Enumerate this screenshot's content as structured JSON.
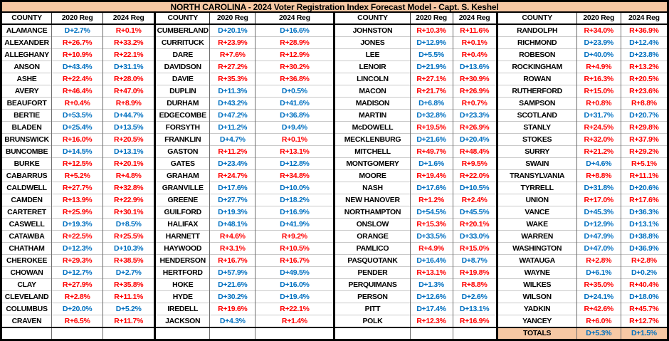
{
  "colors": {
    "header_band": "#f6c8a4",
    "dem_blue": "#0070c0",
    "rep_red": "#ff0000",
    "grid_gray": "#c9c9c9",
    "border_black": "#000000"
  },
  "chart_data": {
    "type": "table",
    "title": "NORTH CAROLINA - 2024 Voter Registration Index Forecast Model - Capt. S. Keshel",
    "columns": [
      "COUNTY",
      "2020 Reg",
      "2024 Reg"
    ],
    "legend_note": "D+ values shown in blue, R+ values shown in red",
    "groups": [
      [
        [
          "ALAMANCE",
          "D+2.7%",
          "R+0.1%"
        ],
        [
          "ALEXANDER",
          "R+26.7%",
          "R+33.2%"
        ],
        [
          "ALLEGHANY",
          "R+10.9%",
          "R+22.1%"
        ],
        [
          "ANSON",
          "D+43.4%",
          "D+31.1%"
        ],
        [
          "ASHE",
          "R+22.4%",
          "R+28.0%"
        ],
        [
          "AVERY",
          "R+46.4%",
          "R+47.0%"
        ],
        [
          "BEAUFORT",
          "R+0.4%",
          "R+8.9%"
        ],
        [
          "BERTIE",
          "D+53.5%",
          "D+44.7%"
        ],
        [
          "BLADEN",
          "D+25.4%",
          "D+13.5%"
        ],
        [
          "BRUNSWICK",
          "R+16.0%",
          "R+20.5%"
        ],
        [
          "BUNCOMBE",
          "D+14.5%",
          "D+13.1%"
        ],
        [
          "BURKE",
          "R+12.5%",
          "R+20.1%"
        ],
        [
          "CABARRUS",
          "R+5.2%",
          "R+4.8%"
        ],
        [
          "CALDWELL",
          "R+27.7%",
          "R+32.8%"
        ],
        [
          "CAMDEN",
          "R+13.9%",
          "R+22.9%"
        ],
        [
          "CARTERET",
          "R+25.9%",
          "R+30.1%"
        ],
        [
          "CASWELL",
          "D+19.3%",
          "D+8.5%"
        ],
        [
          "CATAWBA",
          "R+22.5%",
          "R+25.5%"
        ],
        [
          "CHATHAM",
          "D+12.3%",
          "D+10.3%"
        ],
        [
          "CHEROKEE",
          "R+29.3%",
          "R+38.5%"
        ],
        [
          "CHOWAN",
          "D+12.7%",
          "D+2.7%"
        ],
        [
          "CLAY",
          "R+27.9%",
          "R+35.8%"
        ],
        [
          "CLEVELAND",
          "R+2.8%",
          "R+11.1%"
        ],
        [
          "COLUMBUS",
          "D+20.0%",
          "D+5.2%"
        ],
        [
          "CRAVEN",
          "R+6.5%",
          "R+11.7%"
        ]
      ],
      [
        [
          "CUMBERLAND",
          "D+20.1%",
          "D+16.6%"
        ],
        [
          "CURRITUCK",
          "R+23.9%",
          "R+28.9%"
        ],
        [
          "DARE",
          "R+7.6%",
          "R+12.9%"
        ],
        [
          "DAVIDSON",
          "R+27.2%",
          "R+30.2%"
        ],
        [
          "DAVIE",
          "R+35.3%",
          "R+36.8%"
        ],
        [
          "DUPLIN",
          "D+11.3%",
          "D+0.5%"
        ],
        [
          "DURHAM",
          "D+43.2%",
          "D+41.6%"
        ],
        [
          "EDGECOMBE",
          "D+47.2%",
          "D+36.8%"
        ],
        [
          "FORSYTH",
          "D+11.2%",
          "D+9.4%"
        ],
        [
          "FRANKLIN",
          "D+4.7%",
          "R+0.1%"
        ],
        [
          "GASTON",
          "R+11.2%",
          "R+13.1%"
        ],
        [
          "GATES",
          "D+23.4%",
          "D+12.8%"
        ],
        [
          "GRAHAM",
          "R+24.7%",
          "R+34.8%"
        ],
        [
          "GRANVILLE",
          "D+17.6%",
          "D+10.0%"
        ],
        [
          "GREENE",
          "D+27.7%",
          "D+18.2%"
        ],
        [
          "GUILFORD",
          "D+19.3%",
          "D+16.9%"
        ],
        [
          "HALIFAX",
          "D+48.1%",
          "D+41.9%"
        ],
        [
          "HARNETT",
          "R+4.6%",
          "R+9.2%"
        ],
        [
          "HAYWOOD",
          "R+3.1%",
          "R+10.5%"
        ],
        [
          "HENDERSON",
          "R+16.7%",
          "R+16.7%"
        ],
        [
          "HERTFORD",
          "D+57.9%",
          "D+49.5%"
        ],
        [
          "HOKE",
          "D+21.6%",
          "D+16.0%"
        ],
        [
          "HYDE",
          "D+30.2%",
          "D+19.4%"
        ],
        [
          "IREDELL",
          "R+19.6%",
          "R+22.1%"
        ],
        [
          "JACKSON",
          "D+4.3%",
          "R+1.4%"
        ]
      ],
      [
        [
          "JOHNSTON",
          "R+10.3%",
          "R+11.6%"
        ],
        [
          "JONES",
          "D+12.9%",
          "R+0.1%"
        ],
        [
          "LEE",
          "D+5.5%",
          "R+0.4%"
        ],
        [
          "LENOIR",
          "D+21.9%",
          "D+13.6%"
        ],
        [
          "LINCOLN",
          "R+27.1%",
          "R+30.9%"
        ],
        [
          "MACON",
          "R+21.7%",
          "R+26.9%"
        ],
        [
          "MADISON",
          "D+6.8%",
          "R+0.7%"
        ],
        [
          "MARTIN",
          "D+32.8%",
          "D+23.3%"
        ],
        [
          "McDOWELL",
          "R+19.5%",
          "R+26.9%"
        ],
        [
          "MECKLENBURG",
          "D+21.6%",
          "D+20.4%"
        ],
        [
          "MITCHELL",
          "R+49.7%",
          "R+48.4%"
        ],
        [
          "MONTGOMERY",
          "D+1.6%",
          "R+9.5%"
        ],
        [
          "MOORE",
          "R+19.4%",
          "R+22.0%"
        ],
        [
          "NASH",
          "D+17.6%",
          "D+10.5%"
        ],
        [
          "NEW HANOVER",
          "R+1.2%",
          "R+2.4%"
        ],
        [
          "NORTHAMPTON",
          "D+54.5%",
          "D+45.5%"
        ],
        [
          "ONSLOW",
          "R+15.3%",
          "R+20.1%"
        ],
        [
          "ORANGE",
          "D+33.5%",
          "D+33.0%"
        ],
        [
          "PAMLICO",
          "R+4.9%",
          "R+15.0%"
        ],
        [
          "PASQUOTANK",
          "D+16.4%",
          "D+8.7%"
        ],
        [
          "PENDER",
          "R+13.1%",
          "R+19.8%"
        ],
        [
          "PERQUIMANS",
          "D+1.3%",
          "R+8.8%"
        ],
        [
          "PERSON",
          "D+12.6%",
          "D+2.6%"
        ],
        [
          "PITT",
          "D+17.4%",
          "D+13.1%"
        ],
        [
          "POLK",
          "R+12.3%",
          "R+16.9%"
        ]
      ],
      [
        [
          "RANDOLPH",
          "R+34.0%",
          "R+36.9%"
        ],
        [
          "RICHMOND",
          "D+23.9%",
          "D+12.4%"
        ],
        [
          "ROBESON",
          "D+40.0%",
          "D+23.8%"
        ],
        [
          "ROCKINGHAM",
          "R+4.9%",
          "R+13.2%"
        ],
        [
          "ROWAN",
          "R+16.3%",
          "R+20.5%"
        ],
        [
          "RUTHERFORD",
          "R+15.0%",
          "R+23.6%"
        ],
        [
          "SAMPSON",
          "R+0.8%",
          "R+8.8%"
        ],
        [
          "SCOTLAND",
          "D+31.7%",
          "D+20.7%"
        ],
        [
          "STANLY",
          "R+24.5%",
          "R+29.8%"
        ],
        [
          "STOKES",
          "R+32.0%",
          "R+37.9%"
        ],
        [
          "SURRY",
          "R+21.2%",
          "R+29.2%"
        ],
        [
          "SWAIN",
          "D+4.6%",
          "R+5.1%"
        ],
        [
          "TRANSYLVANIA",
          "R+8.8%",
          "R+11.1%"
        ],
        [
          "TYRRELL",
          "D+31.8%",
          "D+20.6%"
        ],
        [
          "UNION",
          "R+17.0%",
          "R+17.6%"
        ],
        [
          "VANCE",
          "D+45.3%",
          "D+36.3%"
        ],
        [
          "WAKE",
          "D+12.9%",
          "D+13.1%"
        ],
        [
          "WARREN",
          "D+47.9%",
          "D+38.8%"
        ],
        [
          "WASHINGTON",
          "D+47.0%",
          "D+36.9%"
        ],
        [
          "WATAUGA",
          "R+2.8%",
          "R+2.8%"
        ],
        [
          "WAYNE",
          "D+6.1%",
          "D+0.2%"
        ],
        [
          "WILKES",
          "R+35.0%",
          "R+40.4%"
        ],
        [
          "WILSON",
          "D+24.1%",
          "D+18.0%"
        ],
        [
          "YADKIN",
          "R+42.6%",
          "R+45.7%"
        ],
        [
          "YANCEY",
          "R+6.0%",
          "R+12.7%"
        ]
      ]
    ],
    "totals": {
      "label": "TOTALS",
      "reg2020": "D+5.3%",
      "reg2024": "D+1.5%"
    }
  }
}
